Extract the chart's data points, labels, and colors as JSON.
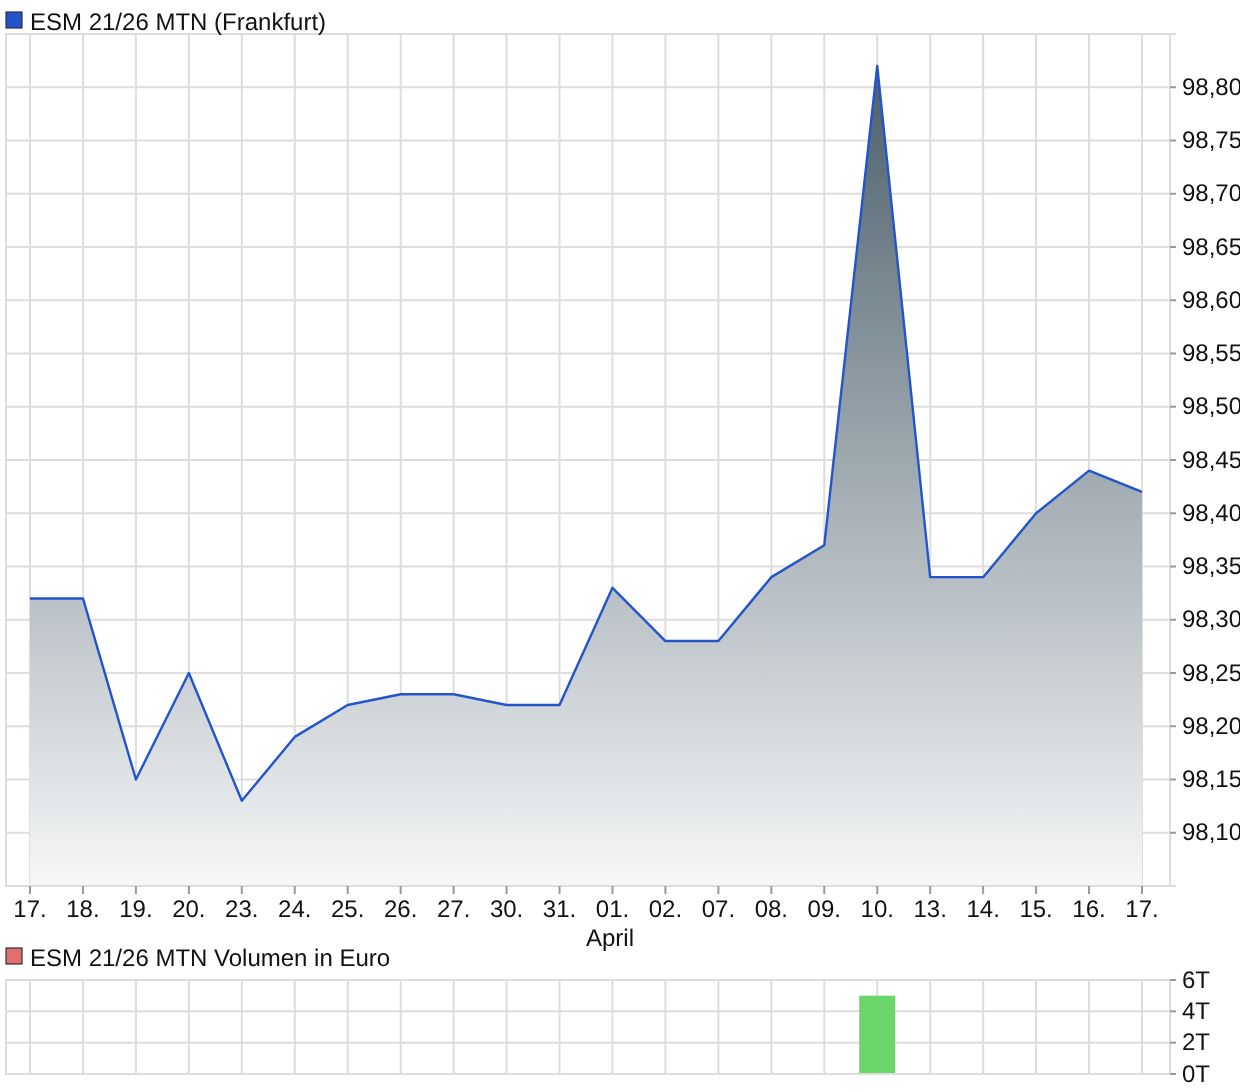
{
  "chart_data": [
    {
      "type": "area",
      "categories": [
        "17.",
        "18.",
        "19.",
        "20.",
        "23.",
        "24.",
        "25.",
        "26.",
        "27.",
        "30.",
        "31.",
        "01.",
        "02.",
        "07.",
        "08.",
        "09.",
        "10.",
        "13.",
        "14.",
        "15.",
        "16.",
        "17."
      ],
      "series": [
        {
          "name": "ESM 21/26 MTN (Frankfurt)",
          "color": "#2255cc",
          "values": [
            98.32,
            98.32,
            98.15,
            98.25,
            98.13,
            98.19,
            98.22,
            98.23,
            98.23,
            98.22,
            98.22,
            98.33,
            98.28,
            98.28,
            98.34,
            98.37,
            98.82,
            98.34,
            98.34,
            98.4,
            98.44,
            98.42
          ]
        }
      ],
      "ylim": [
        98.05,
        98.85
      ],
      "yticks": [
        {
          "value": 98.1,
          "label": "98,10"
        },
        {
          "value": 98.15,
          "label": "98,15"
        },
        {
          "value": 98.2,
          "label": "98,20"
        },
        {
          "value": 98.25,
          "label": "98,25"
        },
        {
          "value": 98.3,
          "label": "98,30"
        },
        {
          "value": 98.35,
          "label": "98,35"
        },
        {
          "value": 98.4,
          "label": "98,40"
        },
        {
          "value": 98.45,
          "label": "98,45"
        },
        {
          "value": 98.5,
          "label": "98,50"
        },
        {
          "value": 98.55,
          "label": "98,55"
        },
        {
          "value": 98.6,
          "label": "98,60"
        },
        {
          "value": 98.65,
          "label": "98,65"
        },
        {
          "value": 98.7,
          "label": "98,70"
        },
        {
          "value": 98.75,
          "label": "98,75"
        },
        {
          "value": 98.8,
          "label": "98,80"
        }
      ],
      "annotations": [
        "April"
      ],
      "grid": true,
      "legend": "top left"
    },
    {
      "type": "bar",
      "title": "ESM 21/26 MTN Volumen in Euro",
      "categories": [
        null,
        null,
        null,
        null,
        null,
        null,
        null,
        null,
        null,
        null,
        null,
        null,
        null,
        null,
        null,
        null,
        null,
        null,
        null,
        null,
        null,
        null
      ],
      "series": [
        {
          "color": "#6ad66a",
          "values": [
            0,
            0,
            0,
            0,
            0,
            0,
            0,
            0,
            0,
            0,
            0,
            0,
            0,
            0,
            0,
            0,
            5,
            0,
            0,
            0,
            0,
            0
          ]
        }
      ],
      "ylim": [
        0,
        6
      ],
      "yticks": [
        {
          "value": 0,
          "label": "0T"
        },
        {
          "value": 2,
          "label": "2T"
        },
        {
          "value": 4,
          "label": "4T"
        },
        {
          "value": 6,
          "label": "6T"
        }
      ],
      "grid": true,
      "tick_labels": "y"
    }
  ]
}
